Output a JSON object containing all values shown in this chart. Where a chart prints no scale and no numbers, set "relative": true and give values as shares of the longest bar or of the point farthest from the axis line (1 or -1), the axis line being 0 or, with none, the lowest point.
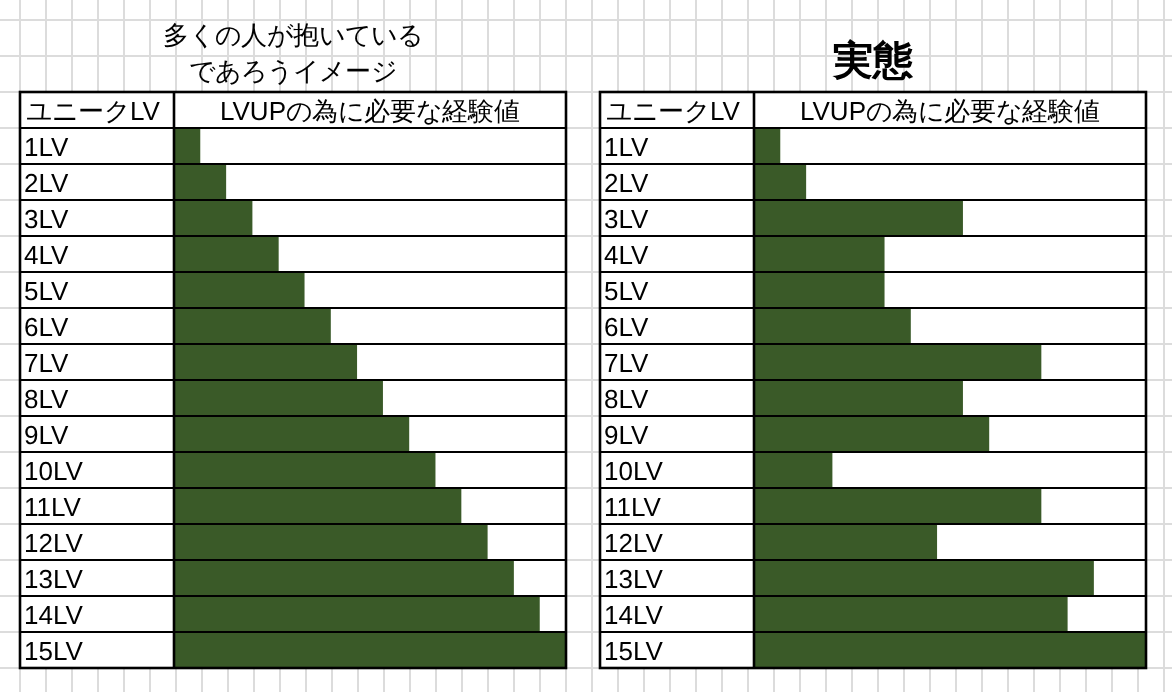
{
  "chart_data": [
    {
      "type": "bar",
      "orientation": "horizontal",
      "relative": true,
      "title": "多くの人が抱いているであろうイメージ",
      "ylabel": "ユニークLV",
      "xlabel": "LVUPの為に必要な経験値",
      "categories": [
        "1LV",
        "2LV",
        "3LV",
        "4LV",
        "5LV",
        "6LV",
        "7LV",
        "8LV",
        "9LV",
        "10LV",
        "11LV",
        "12LV",
        "13LV",
        "14LV",
        "15LV"
      ],
      "values": [
        0.067,
        0.133,
        0.2,
        0.267,
        0.333,
        0.4,
        0.467,
        0.533,
        0.6,
        0.667,
        0.733,
        0.8,
        0.867,
        0.933,
        1
      ],
      "color": "#3a5a28"
    },
    {
      "type": "bar",
      "orientation": "horizontal",
      "relative": true,
      "title": "実態",
      "ylabel": "ユニークLV",
      "xlabel": "LVUPの為に必要な経験値",
      "categories": [
        "1LV",
        "2LV",
        "3LV",
        "4LV",
        "5LV",
        "6LV",
        "7LV",
        "8LV",
        "9LV",
        "10LV",
        "11LV",
        "12LV",
        "13LV",
        "14LV",
        "15LV"
      ],
      "values": [
        0.067,
        0.133,
        0.533,
        0.333,
        0.333,
        0.4,
        0.733,
        0.533,
        0.6,
        0.2,
        0.733,
        0.467,
        0.867,
        0.8,
        1
      ],
      "color": "#3a5a28"
    }
  ]
}
